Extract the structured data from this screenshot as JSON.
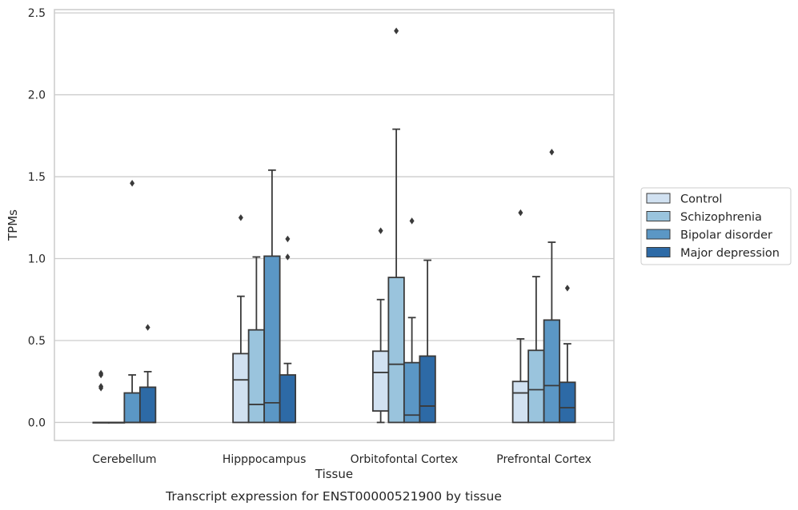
{
  "caption": "Transcript expression for ENST00000521900 by tissue",
  "chart_data": {
    "type": "box",
    "xlabel": "Tissue",
    "ylabel": "TPMs",
    "ylim": [
      -0.11,
      2.52
    ],
    "yticks": [
      "0.0",
      "0.5",
      "1.0",
      "1.5",
      "2.0",
      "2.5"
    ],
    "grid": "horizontal",
    "legend_position": "right",
    "categories": [
      "Cerebellum",
      "Hipppocampus",
      "Orbitofontal Cortex",
      "Prefrontal Cortex"
    ],
    "series": [
      {
        "name": "Control",
        "color": "#d1e1f1",
        "boxes": [
          {
            "whislo": 0,
            "q1": 0,
            "med": 0,
            "q3": 0,
            "whishi": 0,
            "fliers": [
              0.21,
              0.22,
              0.29,
              0.3
            ]
          },
          {
            "whislo": 0,
            "q1": 0,
            "med": 0.26,
            "q3": 0.42,
            "whishi": 0.77,
            "fliers": [
              1.25
            ]
          },
          {
            "whislo": 0,
            "q1": 0.07,
            "med": 0.305,
            "q3": 0.435,
            "whishi": 0.75,
            "fliers": [
              1.17
            ]
          },
          {
            "whislo": 0,
            "q1": 0,
            "med": 0.18,
            "q3": 0.25,
            "whishi": 0.51,
            "fliers": [
              1.28
            ]
          }
        ]
      },
      {
        "name": "Schizophrenia",
        "color": "#9ac4dd",
        "boxes": [
          {
            "whislo": 0,
            "q1": 0,
            "med": 0,
            "q3": 0,
            "whishi": 0,
            "fliers": []
          },
          {
            "whislo": 0,
            "q1": 0,
            "med": 0.11,
            "q3": 0.565,
            "whishi": 1.01,
            "fliers": []
          },
          {
            "whislo": 0,
            "q1": 0,
            "med": 0.355,
            "q3": 0.885,
            "whishi": 1.79,
            "fliers": [
              2.39
            ]
          },
          {
            "whislo": 0,
            "q1": 0,
            "med": 0.2,
            "q3": 0.44,
            "whishi": 0.89,
            "fliers": []
          }
        ]
      },
      {
        "name": "Bipolar disorder",
        "color": "#5b97c5",
        "boxes": [
          {
            "whislo": 0,
            "q1": 0,
            "med": 0,
            "q3": 0.18,
            "whishi": 0.29,
            "fliers": [
              1.46
            ]
          },
          {
            "whislo": 0,
            "q1": 0,
            "med": 0.12,
            "q3": 1.015,
            "whishi": 1.54,
            "fliers": []
          },
          {
            "whislo": 0,
            "q1": 0,
            "med": 0.045,
            "q3": 0.365,
            "whishi": 0.64,
            "fliers": [
              1.23
            ]
          },
          {
            "whislo": 0,
            "q1": 0,
            "med": 0.225,
            "q3": 0.625,
            "whishi": 1.1,
            "fliers": [
              1.65
            ]
          }
        ]
      },
      {
        "name": "Major depression",
        "color": "#2d6aa6",
        "boxes": [
          {
            "whislo": 0,
            "q1": 0,
            "med": 0,
            "q3": 0.215,
            "whishi": 0.31,
            "fliers": [
              0.58
            ]
          },
          {
            "whislo": 0,
            "q1": 0,
            "med": 0,
            "q3": 0.29,
            "whishi": 0.36,
            "fliers": [
              1.01,
              1.12
            ]
          },
          {
            "whislo": 0,
            "q1": 0,
            "med": 0.1,
            "q3": 0.405,
            "whishi": 0.99,
            "fliers": []
          },
          {
            "whislo": 0,
            "q1": 0,
            "med": 0.09,
            "q3": 0.245,
            "whishi": 0.48,
            "fliers": [
              0.82
            ]
          }
        ]
      }
    ]
  }
}
